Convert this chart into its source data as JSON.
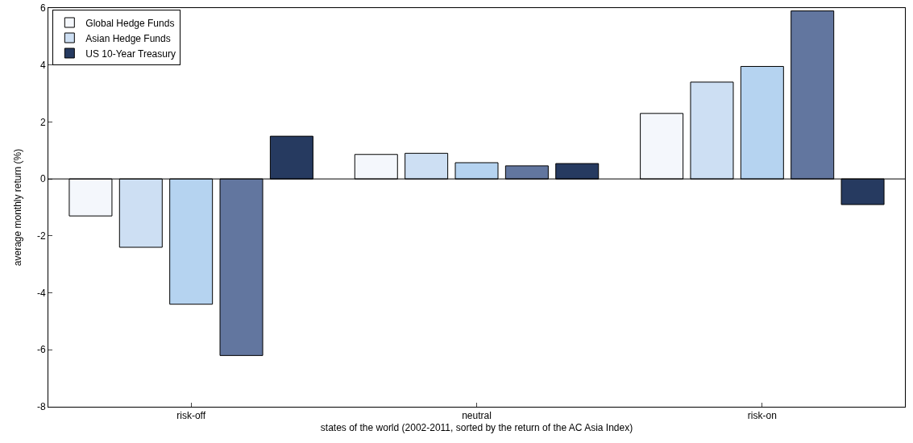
{
  "chart_data": {
    "type": "bar",
    "xlabel": "states of the world (2002-2011, sorted by the return of the AC Asia Index)",
    "ylabel": "average monthly return (%)",
    "categories": [
      "risk-off",
      "neutral",
      "risk-on"
    ],
    "series": [
      {
        "name": "Global Hedge Funds",
        "color": "#f4f7fc",
        "values": [
          -1.3,
          0.86,
          2.3
        ]
      },
      {
        "name": "Asian Hedge Funds",
        "color": "#cddff3",
        "values": [
          -2.4,
          0.9,
          3.4
        ]
      },
      {
        "name": null,
        "color": "#b5d3f0",
        "values": [
          -4.4,
          0.57,
          3.95
        ]
      },
      {
        "name": null,
        "color": "#62769f",
        "values": [
          -6.2,
          0.46,
          5.9
        ]
      },
      {
        "name": "US 10-Year Treasury",
        "color": "#263a60",
        "values": [
          1.5,
          0.54,
          -0.9
        ]
      }
    ],
    "ylim": [
      -8,
      6
    ],
    "yticks": [
      -8,
      -6,
      -4,
      -2,
      0,
      2,
      4,
      6
    ],
    "grid": false,
    "ref_lines": [
      {
        "axis": "y",
        "value": 0,
        "color": "#000000"
      }
    ],
    "legend": "top left"
  }
}
